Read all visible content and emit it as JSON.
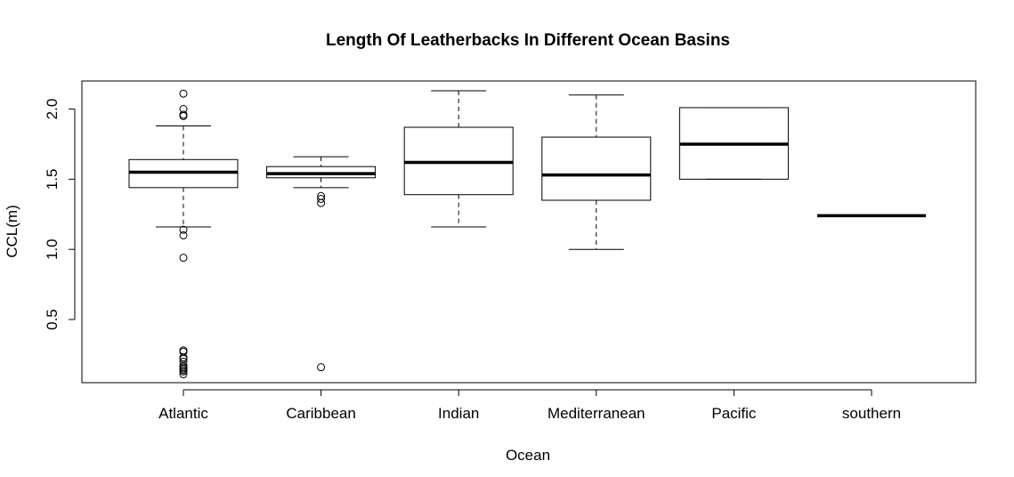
{
  "chart_data": {
    "type": "boxplot",
    "title": "Length Of Leatherbacks In Different Ocean Basins",
    "xlabel": "Ocean",
    "ylabel": "CCL(m)",
    "ylim": [
      0.05,
      2.2
    ],
    "yticks": [
      0.5,
      1.0,
      1.5,
      2.0
    ],
    "ytick_labels": [
      "0.5",
      "1.0",
      "1.5",
      "2.0"
    ],
    "grid": false,
    "categories": [
      "Atlantic",
      "Caribbean",
      "Indian",
      "Mediterranean",
      "Pacific",
      "southern"
    ],
    "boxes": [
      {
        "name": "Atlantic",
        "whisker_low": 1.16,
        "q1": 1.44,
        "median": 1.55,
        "q3": 1.64,
        "whisker_high": 1.88,
        "outliers": [
          2.11,
          2.0,
          1.96,
          1.95,
          1.14,
          1.1,
          0.94,
          0.28,
          0.27,
          0.23,
          0.22,
          0.2,
          0.17,
          0.16,
          0.15,
          0.14,
          0.13,
          0.11
        ]
      },
      {
        "name": "Caribbean",
        "whisker_low": 1.44,
        "q1": 1.51,
        "median": 1.54,
        "q3": 1.59,
        "whisker_high": 1.66,
        "outliers": [
          1.38,
          1.36,
          1.33,
          0.16
        ]
      },
      {
        "name": "Indian",
        "whisker_low": 1.16,
        "q1": 1.39,
        "median": 1.62,
        "q3": 1.87,
        "whisker_high": 2.13,
        "outliers": []
      },
      {
        "name": "Mediterranean",
        "whisker_low": 1.0,
        "q1": 1.35,
        "median": 1.53,
        "q3": 1.8,
        "whisker_high": 2.1,
        "outliers": []
      },
      {
        "name": "Pacific",
        "whisker_low": 1.5,
        "q1": 1.5,
        "median": 1.75,
        "q3": 2.01,
        "whisker_high": 2.01,
        "outliers": []
      },
      {
        "name": "southern",
        "whisker_low": 1.24,
        "q1": 1.24,
        "median": 1.24,
        "q3": 1.24,
        "whisker_high": 1.24,
        "outliers": []
      }
    ]
  }
}
